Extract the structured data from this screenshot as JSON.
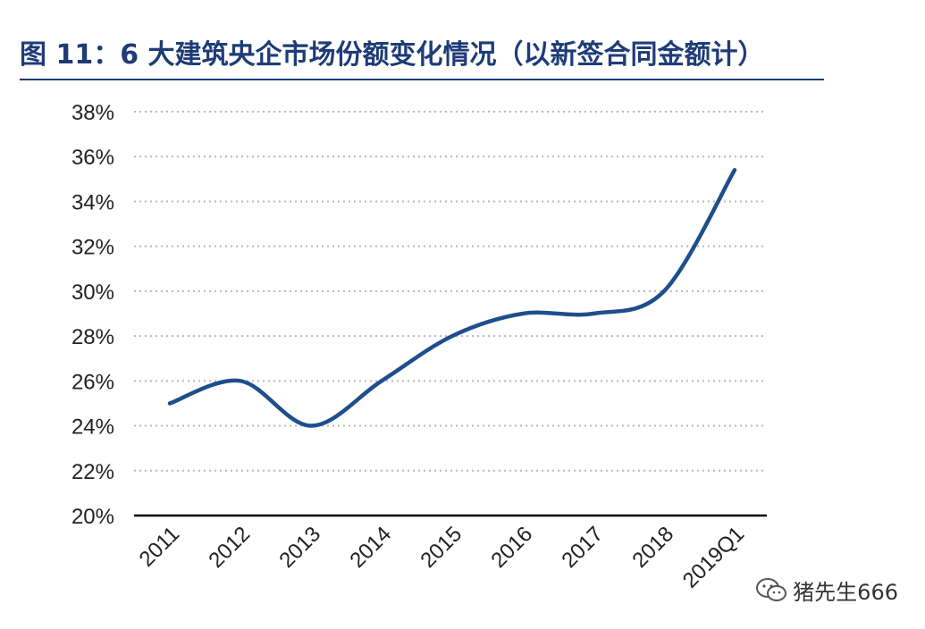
{
  "title": "图 11：6 大建筑央企市场份额变化情况（以新签合同金额计）",
  "watermark": {
    "icon": "wechat-icon",
    "text": "猪先生666"
  },
  "colors": {
    "title": "#1f3b78",
    "line": "#1f4e8c",
    "grid": "#b8b8b8",
    "axis": "#000000"
  },
  "chart_data": {
    "type": "line",
    "categories": [
      "2011",
      "2012",
      "2013",
      "2014",
      "2015",
      "2016",
      "2017",
      "2018",
      "2019Q1"
    ],
    "series": [
      {
        "values": [
          25.0,
          26.0,
          24.0,
          26.0,
          28.0,
          29.0,
          29.0,
          30.0,
          35.4
        ]
      }
    ],
    "ylim": [
      20,
      38
    ],
    "yticks": [
      "20%",
      "22%",
      "24%",
      "26%",
      "28%",
      "30%",
      "32%",
      "34%",
      "36%",
      "38%"
    ],
    "ytick_values": [
      20,
      22,
      24,
      26,
      28,
      30,
      32,
      34,
      36,
      38
    ],
    "grid": true,
    "legend": "none"
  }
}
